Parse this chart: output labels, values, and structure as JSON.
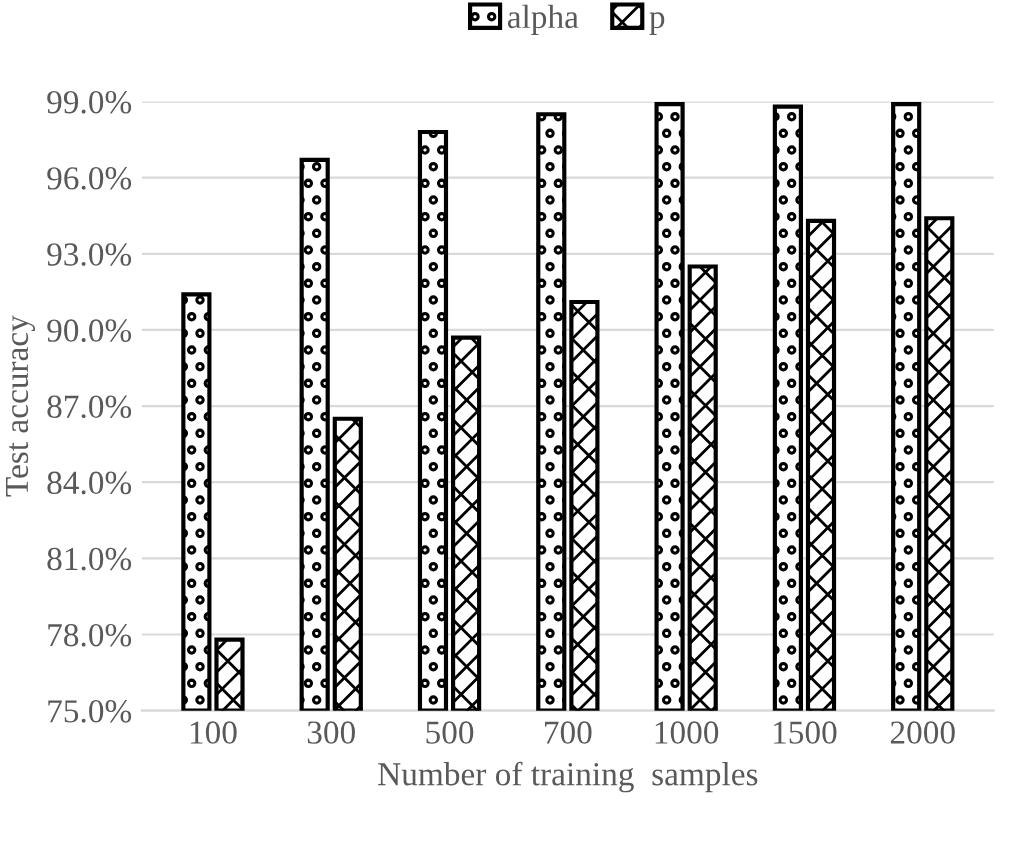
{
  "chart_data": {
    "type": "bar",
    "xlabel": "Number of training  samples",
    "ylabel": "Test accuracy",
    "categories": [
      "100",
      "300",
      "500",
      "700",
      "1000",
      "1500",
      "2000"
    ],
    "series": [
      {
        "name": "alpha",
        "color": "#000000",
        "values": [
          91.4,
          96.7,
          97.8,
          98.5,
          98.9,
          98.8,
          98.9
        ]
      },
      {
        "name": "p",
        "color": "#000000",
        "values": [
          77.8,
          86.5,
          89.7,
          91.1,
          92.5,
          94.3,
          94.4
        ]
      }
    ],
    "ylim": [
      75,
      99
    ],
    "yticks": [
      {
        "value": 75,
        "label": "75.0%"
      },
      {
        "value": 78,
        "label": "78.0%"
      },
      {
        "value": 81,
        "label": "81.0%"
      },
      {
        "value": 84,
        "label": "84.0%"
      },
      {
        "value": 87,
        "label": "87.0%"
      },
      {
        "value": 90,
        "label": "90.0%"
      },
      {
        "value": 93,
        "label": "93.0%"
      },
      {
        "value": 96,
        "label": "96.0%"
      },
      {
        "value": 99,
        "label": "99.0%"
      }
    ],
    "grid": "y",
    "legend": "top"
  }
}
